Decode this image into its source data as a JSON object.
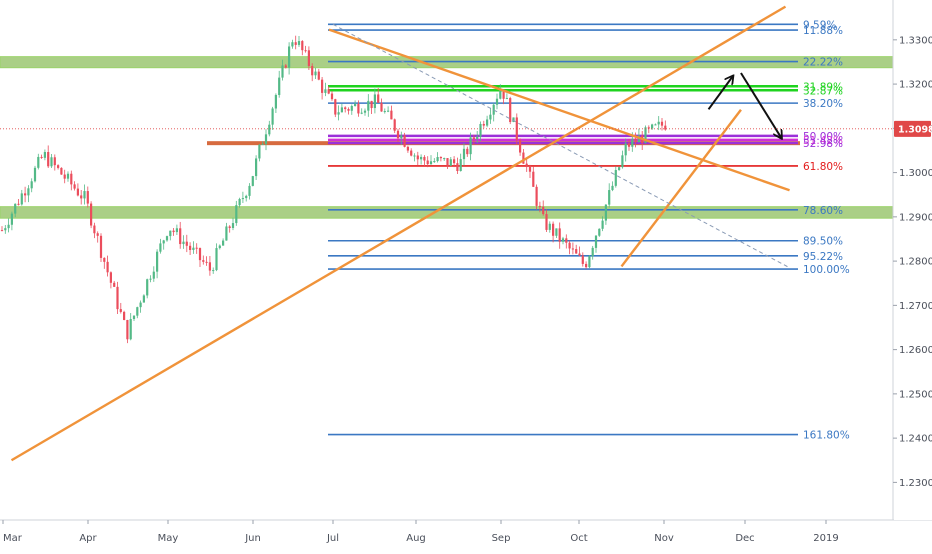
{
  "chart_data": {
    "type": "candlestick",
    "instrument_price_label": "1.30989",
    "x_axis": {
      "labels": [
        "Mar",
        "Apr",
        "May",
        "Jun",
        "Jul",
        "Aug",
        "Sep",
        "Oct",
        "Nov",
        "Dec",
        "2019"
      ]
    },
    "y_axis": {
      "range": [
        1.2215,
        1.339
      ],
      "ticks": [
        "1.33000",
        "1.32000",
        "1.31000",
        "1.30000",
        "1.29000",
        "1.28000",
        "1.27000",
        "1.26000",
        "1.25000",
        "1.24000",
        "1.23000"
      ],
      "grid": false
    },
    "current_price": 1.30989,
    "fibonacci_levels": [
      {
        "label": "9.59%",
        "price": 1.3335,
        "color": "#3b78c3"
      },
      {
        "label": "11.88%",
        "price": 1.3322,
        "color": "#3b78c3"
      },
      {
        "label": "22.22%",
        "price": 1.3251,
        "color": "#3b78c3"
      },
      {
        "label": "31.89%",
        "price": 1.3195,
        "color": "#1fd31f"
      },
      {
        "label": "32.87%",
        "price": 1.3186,
        "color": "#1fd31f"
      },
      {
        "label": "38.20%",
        "price": 1.3157,
        "color": "#3b78c3"
      },
      {
        "label": "50.00%",
        "price": 1.3083,
        "color": "#9b30d9"
      },
      {
        "label": "51.42%",
        "price": 1.3074,
        "color": "#d22fd6"
      },
      {
        "label": "52.98%",
        "price": 1.3067,
        "color": "#9b30d9"
      },
      {
        "label": "61.80%",
        "price": 1.3015,
        "color": "#e31c1c"
      },
      {
        "label": "78.60%",
        "price": 1.2916,
        "color": "#3b78c3"
      },
      {
        "label": "89.50%",
        "price": 1.2846,
        "color": "#3b78c3"
      },
      {
        "label": "95.22%",
        "price": 1.2812,
        "color": "#3b78c3"
      },
      {
        "label": "100.00%",
        "price": 1.2782,
        "color": "#3b78c3"
      },
      {
        "label": "161.80%",
        "price": 1.2408,
        "color": "#3b78c3"
      }
    ],
    "zones": [
      {
        "color": "#8dbf5d",
        "price_top": 1.3262,
        "price_bottom": 1.3237
      },
      {
        "color": "#8dbf5d",
        "price_top": 1.2923,
        "price_bottom": 1.2897
      },
      {
        "color": "#d35b2a",
        "price_top": 1.3071,
        "price_bottom": 1.3062
      }
    ],
    "trendlines": [
      {
        "name": "rising-trendline",
        "from": [
          0.1,
          1.235
        ],
        "to": [
          9.5,
          1.3375
        ]
      },
      {
        "name": "falling-trendline",
        "from": [
          3.95,
          1.3323
        ],
        "to": [
          9.55,
          1.296
        ]
      },
      {
        "name": "oct-rising-trendline",
        "from": [
          7.5,
          1.2788
        ],
        "to": [
          8.95,
          1.3142
        ]
      },
      {
        "name": "dashed-trendline",
        "from": [
          4.0,
          1.3335
        ],
        "to": [
          9.55,
          1.2785
        ],
        "dashed": true
      }
    ],
    "arrows": [
      {
        "name": "arrow-up",
        "from": [
          8.55,
          1.3143
        ],
        "to": [
          8.85,
          1.3218
        ]
      },
      {
        "name": "arrow-down",
        "from": [
          8.95,
          1.3225
        ],
        "to": [
          9.45,
          1.3078
        ]
      }
    ],
    "price_path_monthly": [
      [
        "Mar",
        1.287
      ],
      [
        "Mar-mid",
        1.304
      ],
      [
        "Apr",
        1.294
      ],
      [
        "Apr-mid",
        1.2635
      ],
      [
        "May",
        1.288
      ],
      [
        "May-mid",
        1.278
      ],
      [
        "Jun",
        1.299
      ],
      [
        "Jun-end",
        1.331
      ],
      [
        "Jul",
        1.314
      ],
      [
        "Jul-mid",
        1.316
      ],
      [
        "Aug",
        1.303
      ],
      [
        "Aug-mid",
        1.302
      ],
      [
        "Sep",
        1.3195
      ],
      [
        "Sep-mid",
        1.289
      ],
      [
        "Oct",
        1.279
      ],
      [
        "Oct-mid",
        1.306
      ],
      [
        "Nov",
        1.3115
      ]
    ]
  }
}
